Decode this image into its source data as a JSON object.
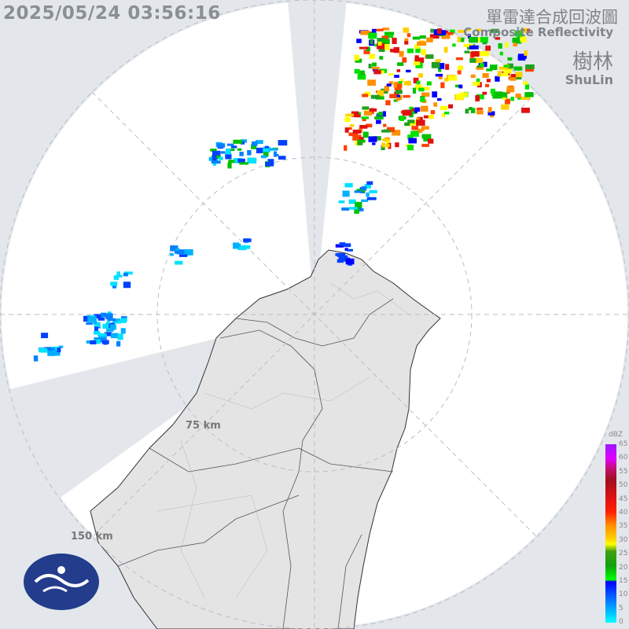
{
  "timestamp": "2025/05/24 03:56:16",
  "product": {
    "title_zh": "單雷達合成回波圖",
    "title_en": "Composite Reflectivity"
  },
  "station": {
    "name_zh": "樹林",
    "name_en": "ShuLin"
  },
  "range_rings": [
    {
      "label": "75 km"
    },
    {
      "label": "150 km"
    }
  ],
  "legend": {
    "unit": "dBZ",
    "ticks": [
      "65",
      "60",
      "55",
      "50",
      "45",
      "40",
      "35",
      "30",
      "25",
      "20",
      "15",
      "10",
      "5",
      "0"
    ]
  },
  "colors": {
    "background": "#e3e7ec",
    "coverage": "#ffffff",
    "land": "#e6e6e6",
    "blocked": "#e3e7ec"
  },
  "logo": {
    "name": "cwa-logo"
  }
}
